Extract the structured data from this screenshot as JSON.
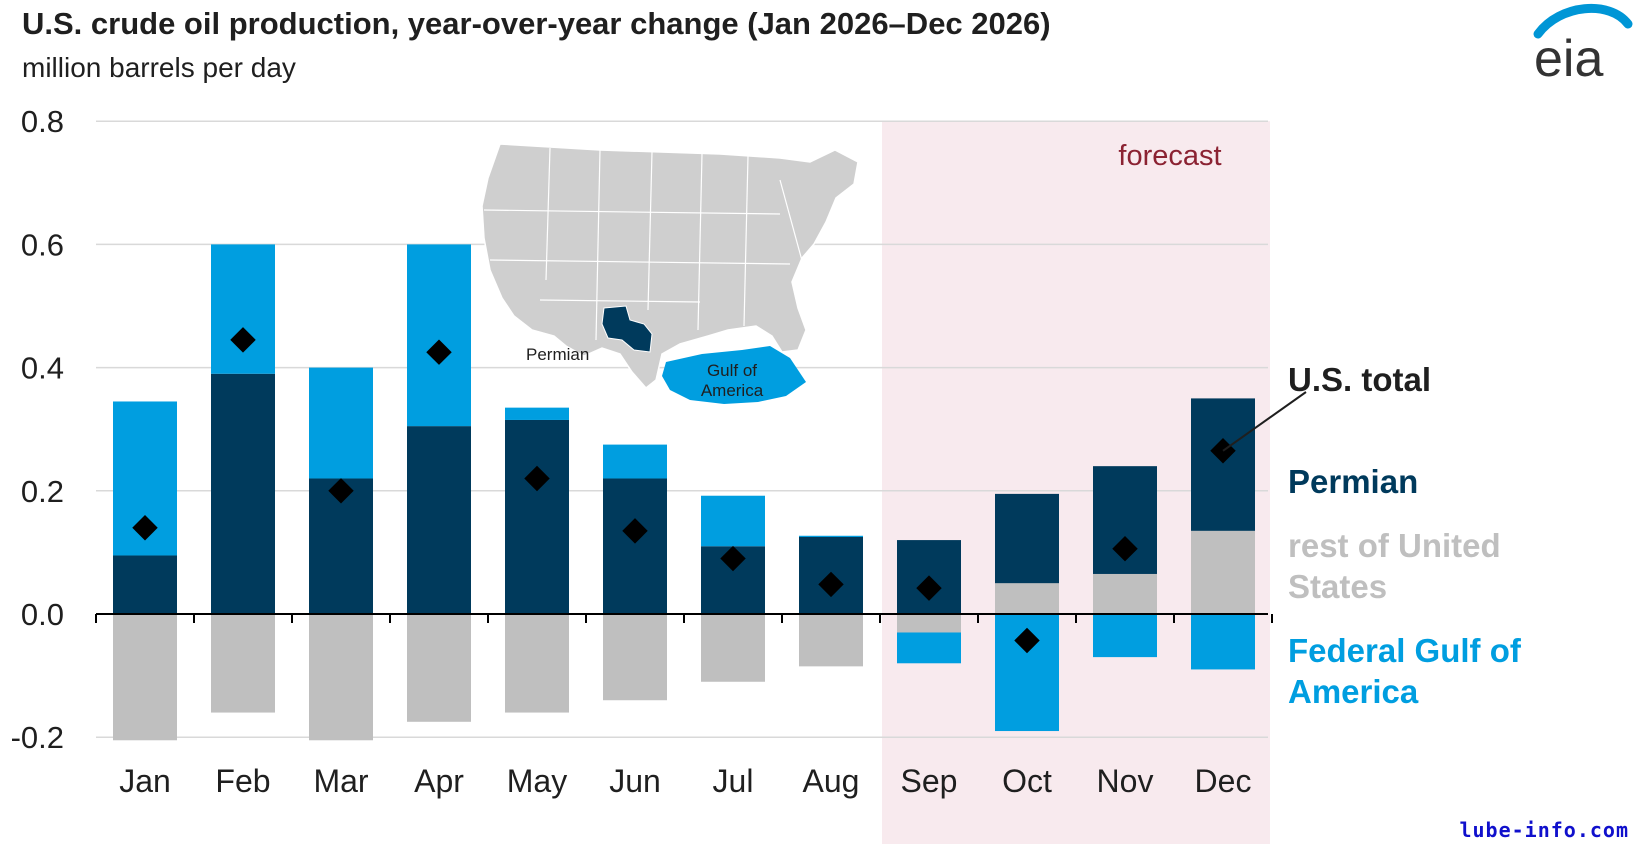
{
  "header": {
    "title": "U.S. crude oil production, year-over-year change (Jan 2026–Dec 2026)",
    "subtitle": "million barrels per day"
  },
  "logo": {
    "text": "eia",
    "arc_color": "#0096d6",
    "text_color": "#333333"
  },
  "watermark": "lube-info.com",
  "colors": {
    "permian": "#003a5c",
    "gulf": "#009ee0",
    "rest": "#bfbfbf",
    "total_marker": "#000000",
    "forecast_shade": "#f8eaee",
    "forecast_label": "#8b2232",
    "gridline": "#d9d9d9"
  },
  "inset_map": {
    "permian_label": "Permian",
    "gulf_label": "Gulf of America"
  },
  "chart_data": {
    "type": "bar",
    "stacked": true,
    "categories": [
      "Jan",
      "Feb",
      "Mar",
      "Apr",
      "May",
      "Jun",
      "Jul",
      "Aug",
      "Sep",
      "Oct",
      "Nov",
      "Dec"
    ],
    "ylim": [
      -0.2,
      0.8
    ],
    "yticks": [
      "0.8",
      "0.6",
      "0.4",
      "0.2",
      "0.0",
      "-0.2"
    ],
    "ytick_values": [
      0.8,
      0.6,
      0.4,
      0.2,
      0.0,
      -0.2
    ],
    "grid": true,
    "forecast": {
      "label": "forecast",
      "start_category": "Sep",
      "end_category": "Dec"
    },
    "series": [
      {
        "name": "Permian",
        "values": [
          0.095,
          0.39,
          0.22,
          0.305,
          0.315,
          0.22,
          0.11,
          0.125,
          0.12,
          0.145,
          0.175,
          0.215
        ]
      },
      {
        "name": "rest of United States",
        "values": [
          -0.205,
          -0.16,
          -0.205,
          -0.175,
          -0.16,
          -0.14,
          -0.11,
          -0.085,
          -0.03,
          0.05,
          0.065,
          0.135
        ]
      },
      {
        "name": "Federal Gulf of America",
        "values": [
          0.25,
          0.21,
          0.18,
          0.295,
          0.02,
          0.055,
          0.082,
          0.002,
          -0.05,
          -0.19,
          -0.07,
          -0.09
        ]
      }
    ],
    "total": {
      "name": "U.S. total",
      "values": [
        0.14,
        0.445,
        0.2,
        0.425,
        0.22,
        0.135,
        0.09,
        0.048,
        0.042,
        -0.043,
        0.106,
        0.265
      ]
    },
    "legend": [
      {
        "label": "U.S. total",
        "color": "#1f1f1f"
      },
      {
        "label": "Permian",
        "color": "#003a5c"
      },
      {
        "label": "rest of United States",
        "color": "#bfbfbf"
      },
      {
        "label": "Federal Gulf of America",
        "color": "#009ee0"
      }
    ]
  }
}
